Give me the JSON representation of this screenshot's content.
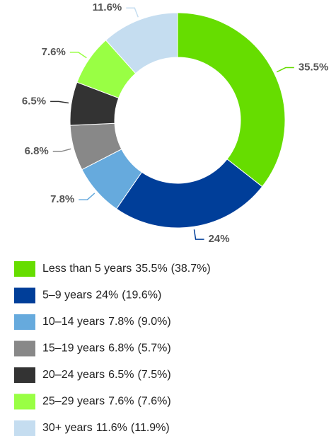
{
  "chart_data": {
    "type": "donut",
    "categories": [
      "Less than 5 years",
      "5–9 years",
      "10–14 years",
      "15–19 years",
      "20–24 years",
      "25–29 years",
      "30+ years"
    ],
    "values": [
      35.5,
      24,
      7.8,
      6.8,
      6.5,
      7.6,
      11.6
    ],
    "value_labels": [
      "35.5%",
      "24%",
      "7.8%",
      "6.8%",
      "6.5%",
      "7.6%",
      "11.6%"
    ],
    "comparison_labels": [
      "(38.7%)",
      "(19.6%)",
      "(9.0%)",
      "(5.7%)",
      "(7.5%)",
      "(7.6%)",
      "(11.9%)"
    ],
    "colors": [
      "#66dd00",
      "#003e99",
      "#66aadd",
      "#888888",
      "#333333",
      "#99ff44",
      "#c5ddf0"
    ],
    "legend": "bottom"
  }
}
